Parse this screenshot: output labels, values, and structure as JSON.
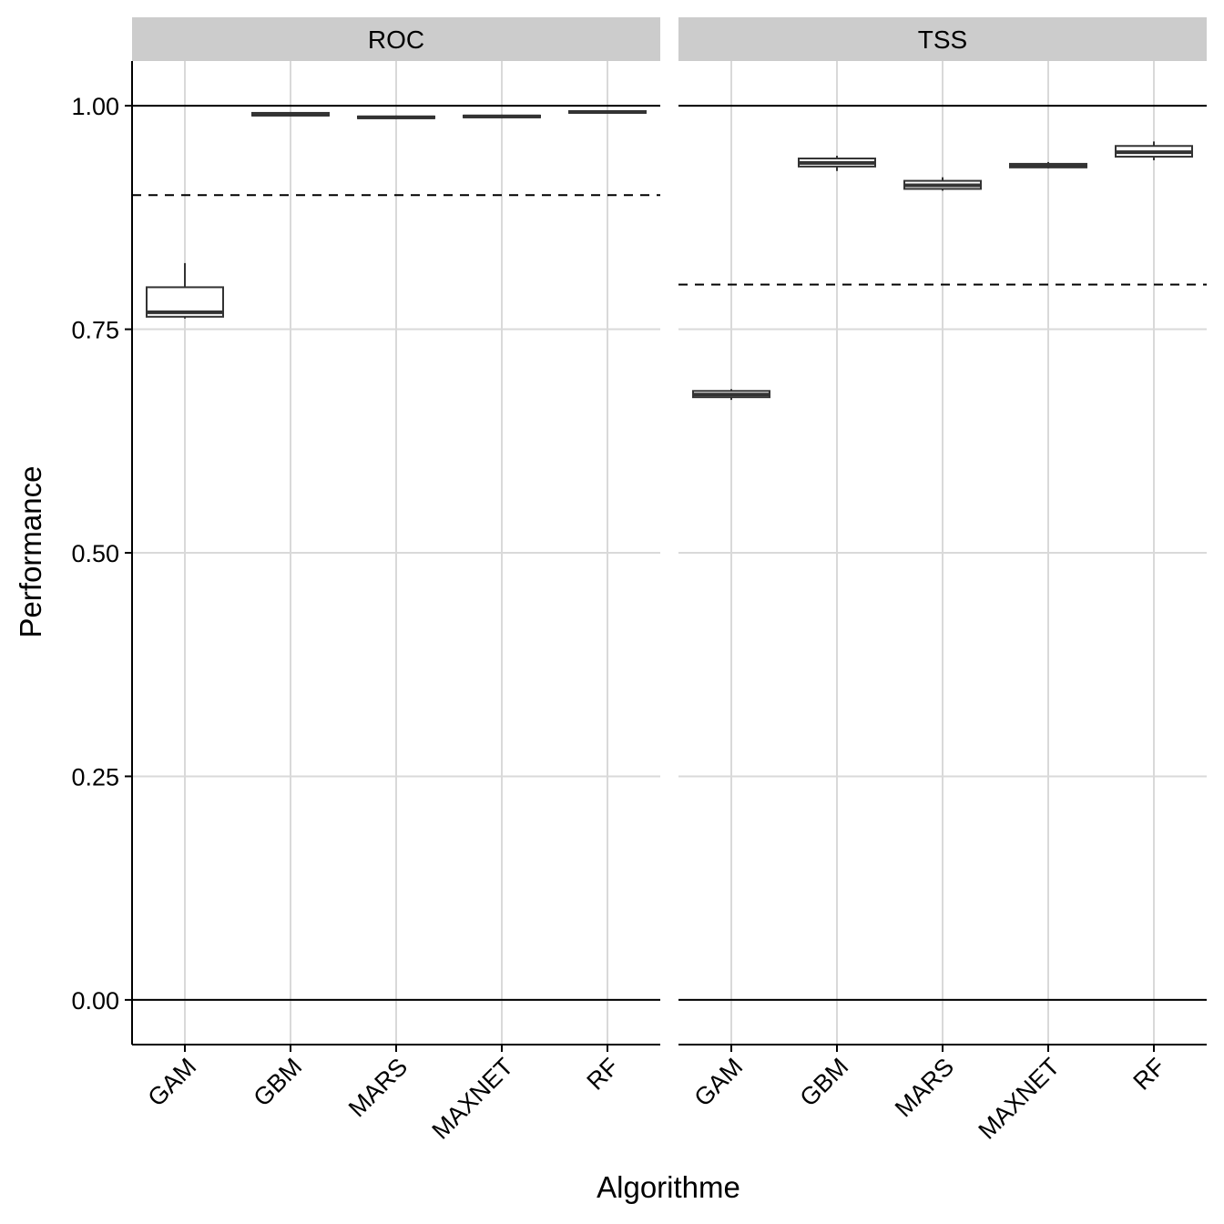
{
  "chart_data": {
    "type": "boxplot",
    "xlabel": "Algorithme",
    "ylabel": "Performance",
    "ylim": [
      -0.05,
      1.05
    ],
    "y_ticks": [
      "0.00",
      "0.25",
      "0.50",
      "0.75",
      "1.00"
    ],
    "grid": true,
    "categories": [
      "GAM",
      "GBM",
      "MARS",
      "MAXNET",
      "RF"
    ],
    "panels": [
      {
        "facet": "ROC",
        "threshold": 0.9,
        "reference_lines": [
          0,
          1
        ],
        "boxes": [
          {
            "category": "GAM",
            "min": 0.762,
            "q1": 0.764,
            "median": 0.769,
            "q3": 0.797,
            "max": 0.824
          },
          {
            "category": "GBM",
            "min": 0.988,
            "q1": 0.989,
            "median": 0.99,
            "q3": 0.992,
            "max": 0.993
          },
          {
            "category": "MARS",
            "min": 0.985,
            "q1": 0.986,
            "median": 0.987,
            "q3": 0.988,
            "max": 0.989
          },
          {
            "category": "MAXNET",
            "min": 0.986,
            "q1": 0.987,
            "median": 0.988,
            "q3": 0.989,
            "max": 0.99
          },
          {
            "category": "RF",
            "min": 0.991,
            "q1": 0.992,
            "median": 0.993,
            "q3": 0.994,
            "max": 0.995
          }
        ]
      },
      {
        "facet": "TSS",
        "threshold": 0.8,
        "reference_lines": [
          0,
          1
        ],
        "boxes": [
          {
            "category": "GAM",
            "min": 0.671,
            "q1": 0.674,
            "median": 0.677,
            "q3": 0.681,
            "max": 0.683
          },
          {
            "category": "GBM",
            "min": 0.927,
            "q1": 0.932,
            "median": 0.936,
            "q3": 0.941,
            "max": 0.944
          },
          {
            "category": "MARS",
            "min": 0.905,
            "q1": 0.907,
            "median": 0.911,
            "q3": 0.916,
            "max": 0.92
          },
          {
            "category": "MAXNET",
            "min": 0.93,
            "q1": 0.931,
            "median": 0.933,
            "q3": 0.935,
            "max": 0.937
          },
          {
            "category": "RF",
            "min": 0.939,
            "q1": 0.943,
            "median": 0.948,
            "q3": 0.955,
            "max": 0.96
          }
        ]
      }
    ]
  }
}
